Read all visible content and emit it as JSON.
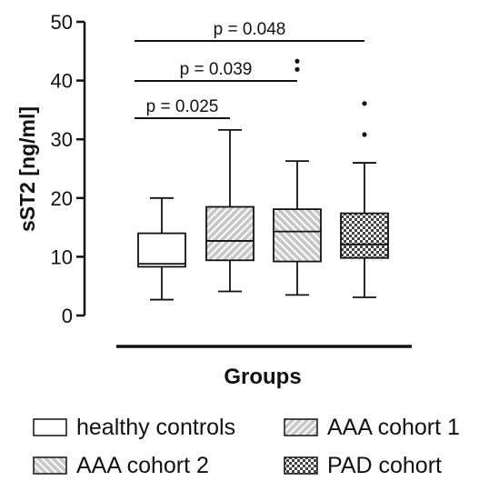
{
  "chart_data": {
    "type": "box",
    "xlabel": "Groups",
    "ylabel": "sST2 [ng/ml]",
    "ylim": [
      0,
      50
    ],
    "yticks": [
      0,
      10,
      20,
      30,
      40,
      50
    ],
    "series": [
      {
        "name": "healthy controls",
        "min": 2.7,
        "q1": 8.3,
        "median": 8.8,
        "q3": 14.0,
        "max": 20.0,
        "outliers": [],
        "fill": "plain"
      },
      {
        "name": "AAA cohort 1",
        "min": 4.1,
        "q1": 9.4,
        "median": 12.7,
        "q3": 18.5,
        "max": 31.6,
        "outliers": [],
        "fill": "diagonal-up"
      },
      {
        "name": "AAA cohort 2",
        "min": 3.5,
        "q1": 9.2,
        "median": 14.3,
        "q3": 18.1,
        "max": 26.3,
        "outliers": [
          41.9,
          43.3
        ],
        "fill": "diagonal-down"
      },
      {
        "name": "PAD cohort",
        "min": 3.1,
        "q1": 9.8,
        "median": 12.1,
        "q3": 17.4,
        "max": 26.0,
        "outliers": [
          30.8,
          36.1
        ],
        "fill": "checker"
      }
    ],
    "annotations": [
      {
        "text": "p = 0.025",
        "from": 0,
        "to": 1,
        "level": 1
      },
      {
        "text": "p = 0.039",
        "from": 0,
        "to": 2,
        "level": 2
      },
      {
        "text": "p = 0.048",
        "from": 0,
        "to": 3,
        "level": 3
      }
    ],
    "legend": {
      "placement": "bottom",
      "columns": 2
    },
    "grid": false
  }
}
